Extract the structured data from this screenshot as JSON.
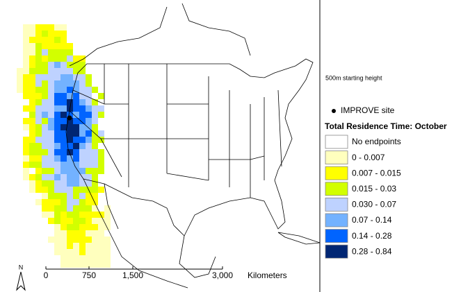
{
  "note_height": "500m starting height",
  "site_legend": {
    "label": "IMPROVE site",
    "color": "#000000"
  },
  "legend": {
    "title": "Total Residence Time: October",
    "items": [
      {
        "label": "No endpoints",
        "color": "#ffffff"
      },
      {
        "label": "0 - 0.007",
        "color": "#ffffbe"
      },
      {
        "label": "0.007 - 0.015",
        "color": "#ffff00"
      },
      {
        "label": "0.015 - 0.03",
        "color": "#d2ff00"
      },
      {
        "label": "0.030 - 0.07",
        "color": "#bed2ff"
      },
      {
        "label": "0.07 - 0.14",
        "color": "#73b2ff"
      },
      {
        "label": "0.14 - 0.28",
        "color": "#0064ff"
      },
      {
        "label": "0.28 - 0.84",
        "color": "#002673"
      }
    ]
  },
  "scale_bar": {
    "labels": [
      "0",
      "750",
      "1,500",
      "3,000"
    ],
    "unit": "Kilometers"
  },
  "north_label": "N"
}
